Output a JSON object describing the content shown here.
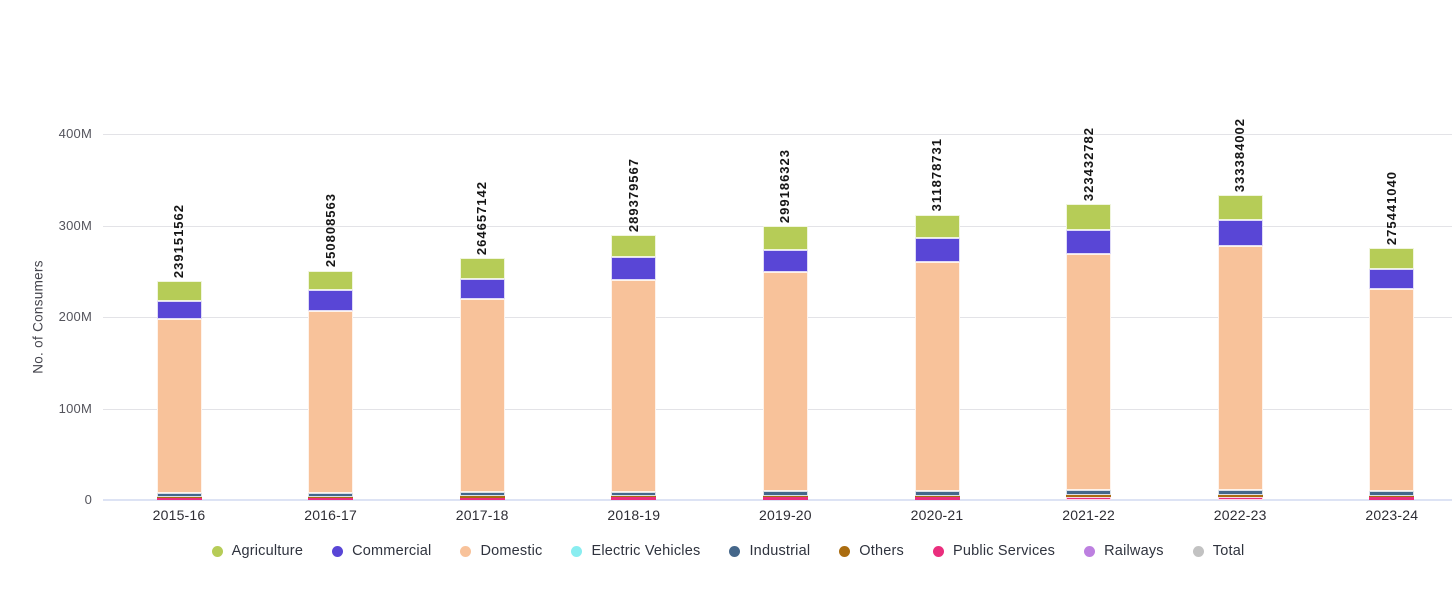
{
  "chart_data": {
    "type": "bar",
    "stacked": true,
    "title": "",
    "xlabel": "",
    "ylabel": "No. of Consumers",
    "ylim": [
      0,
      400000000
    ],
    "grid": true,
    "legend_position": "bottom",
    "yticks": [
      {
        "label": "0",
        "value": 0
      },
      {
        "label": "100M",
        "value": 100000000
      },
      {
        "label": "200M",
        "value": 200000000
      },
      {
        "label": "300M",
        "value": 300000000
      },
      {
        "label": "400M",
        "value": 400000000
      }
    ],
    "categories": [
      "2015-16",
      "2016-17",
      "2017-18",
      "2018-19",
      "2019-20",
      "2020-21",
      "2021-22",
      "2022-23",
      "2023-24"
    ],
    "bar_total_labels": [
      "239151562",
      "250808563",
      "264657142",
      "289379567",
      "299186323",
      "311878731",
      "323432782",
      "333384002",
      "275441040"
    ],
    "stack_order_bottom_to_top": [
      "Railways",
      "Public Services",
      "Others",
      "Industrial",
      "Electric Vehicles",
      "Domestic",
      "Commercial",
      "Agriculture"
    ],
    "series": [
      {
        "name": "Agriculture",
        "color": "#b6cc57",
        "values": [
          21500000,
          21800000,
          23000000,
          23500000,
          25500000,
          25000000,
          28000000,
          27500000,
          23000000
        ]
      },
      {
        "name": "Commercial",
        "color": "#5946d6",
        "values": [
          20000000,
          22000000,
          22500000,
          25000000,
          24500000,
          27000000,
          26500000,
          28000000,
          22000000
        ]
      },
      {
        "name": "Domestic",
        "color": "#f8c29a",
        "values": [
          190040562,
          198897563,
          210645142,
          231766567,
          239572323,
          249863731,
          258312782,
          266544002,
          220681040
        ]
      },
      {
        "name": "Electric Vehicles",
        "color": "#89edf0",
        "values": [
          1000,
          1000,
          2000,
          3000,
          4000,
          5000,
          10000,
          30000,
          50000
        ]
      },
      {
        "name": "Industrial",
        "color": "#45678a",
        "values": [
          4000000,
          4300000,
          4500000,
          4800000,
          5000000,
          5200000,
          5500000,
          5800000,
          5000000
        ]
      },
      {
        "name": "Others",
        "color": "#aa6c10",
        "values": [
          1200000,
          1300000,
          1400000,
          1500000,
          1600000,
          1700000,
          1800000,
          2000000,
          1700000
        ]
      },
      {
        "name": "Public Services",
        "color": "#ea2e7d",
        "values": [
          2400000,
          2500000,
          2600000,
          2800000,
          3000000,
          3100000,
          3300000,
          3500000,
          3000000
        ]
      },
      {
        "name": "Railways",
        "color": "#bd80e0",
        "values": [
          10000,
          10000,
          10000,
          10000,
          10000,
          10000,
          10000,
          10000,
          10000
        ]
      },
      {
        "name": "Total",
        "color": "#c2c2c2",
        "role": "total_label",
        "values": [
          239151562,
          250808563,
          264657142,
          289379567,
          299186323,
          311878731,
          323432782,
          333384002,
          275441040
        ]
      }
    ]
  }
}
